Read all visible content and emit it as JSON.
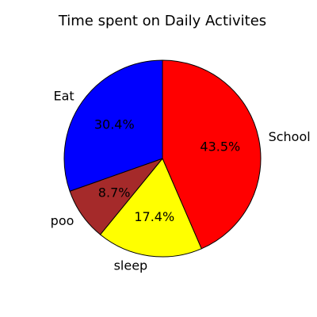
{
  "chart_data": {
    "type": "pie",
    "title": "Time spent on Daily Activites",
    "slices": [
      {
        "label": "School",
        "value": 43.5,
        "pct_label": "43.5%",
        "color": "#ff0000"
      },
      {
        "label": "sleep",
        "value": 17.4,
        "pct_label": "17.4%",
        "color": "#ffff00"
      },
      {
        "label": "poo",
        "value": 8.7,
        "pct_label": "8.7%",
        "color": "#a52a2a"
      },
      {
        "label": "Eat",
        "value": 30.4,
        "pct_label": "30.4%",
        "color": "#0000ff"
      }
    ],
    "start_angle_deg": 90,
    "direction": "clockwise",
    "edge_color": "#000000"
  }
}
